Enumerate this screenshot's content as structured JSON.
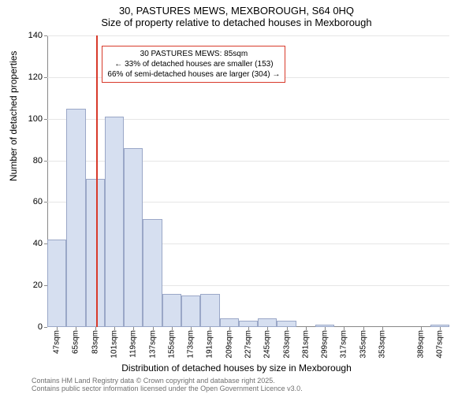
{
  "chart": {
    "type": "histogram",
    "title_line1": "30, PASTURES MEWS, MEXBOROUGH, S64 0HQ",
    "title_line2": "Size of property relative to detached houses in Mexborough",
    "title_fontsize": 13,
    "x_axis_title": "Distribution of detached houses by size in Mexborough",
    "y_axis_title": "Number of detached properties",
    "axis_title_fontsize": 12,
    "background_color": "#ffffff",
    "grid_color": "#e6e6e6",
    "bar_fill": "#d6dff0",
    "bar_border": "#9aa7c7",
    "ref_line_color": "#d83a2b",
    "ylim": [
      0,
      140
    ],
    "ytick_step": 20,
    "yticks": [
      0,
      20,
      40,
      60,
      80,
      100,
      120,
      140
    ],
    "xtick_labels": [
      "47sqm",
      "65sqm",
      "83sqm",
      "101sqm",
      "119sqm",
      "137sqm",
      "155sqm",
      "173sqm",
      "191sqm",
      "209sqm",
      "227sqm",
      "245sqm",
      "263sqm",
      "281sqm",
      "299sqm",
      "317sqm",
      "335sqm",
      "353sqm",
      "389sqm",
      "407sqm"
    ],
    "xtick_every": 2,
    "bars": [
      {
        "x_start": 38,
        "value": 42
      },
      {
        "x_start": 56,
        "value": 105
      },
      {
        "x_start": 74,
        "value": 71
      },
      {
        "x_start": 92,
        "value": 101
      },
      {
        "x_start": 110,
        "value": 86
      },
      {
        "x_start": 128,
        "value": 52
      },
      {
        "x_start": 146,
        "value": 16
      },
      {
        "x_start": 164,
        "value": 15
      },
      {
        "x_start": 182,
        "value": 16
      },
      {
        "x_start": 200,
        "value": 4
      },
      {
        "x_start": 218,
        "value": 3
      },
      {
        "x_start": 236,
        "value": 4
      },
      {
        "x_start": 254,
        "value": 3
      },
      {
        "x_start": 272,
        "value": 0
      },
      {
        "x_start": 290,
        "value": 1
      },
      {
        "x_start": 308,
        "value": 0
      },
      {
        "x_start": 326,
        "value": 0
      },
      {
        "x_start": 344,
        "value": 0
      },
      {
        "x_start": 362,
        "value": 0
      },
      {
        "x_start": 380,
        "value": 0
      },
      {
        "x_start": 398,
        "value": 1
      }
    ],
    "x_domain": [
      38,
      416
    ],
    "bin_width_sqm": 18,
    "reference_line_x": 85,
    "annotation": {
      "line1": "30 PASTURES MEWS: 85sqm",
      "line2": "← 33% of detached houses are smaller (153)",
      "line3": "66% of semi-detached houses are larger (304) →",
      "box_border": "#d83a2b",
      "fontsize": 10
    },
    "footer_line1": "Contains HM Land Registry data © Crown copyright and database right 2025.",
    "footer_line2": "Contains public sector information licensed under the Open Government Licence v3.0.",
    "footer_color": "#707070"
  }
}
